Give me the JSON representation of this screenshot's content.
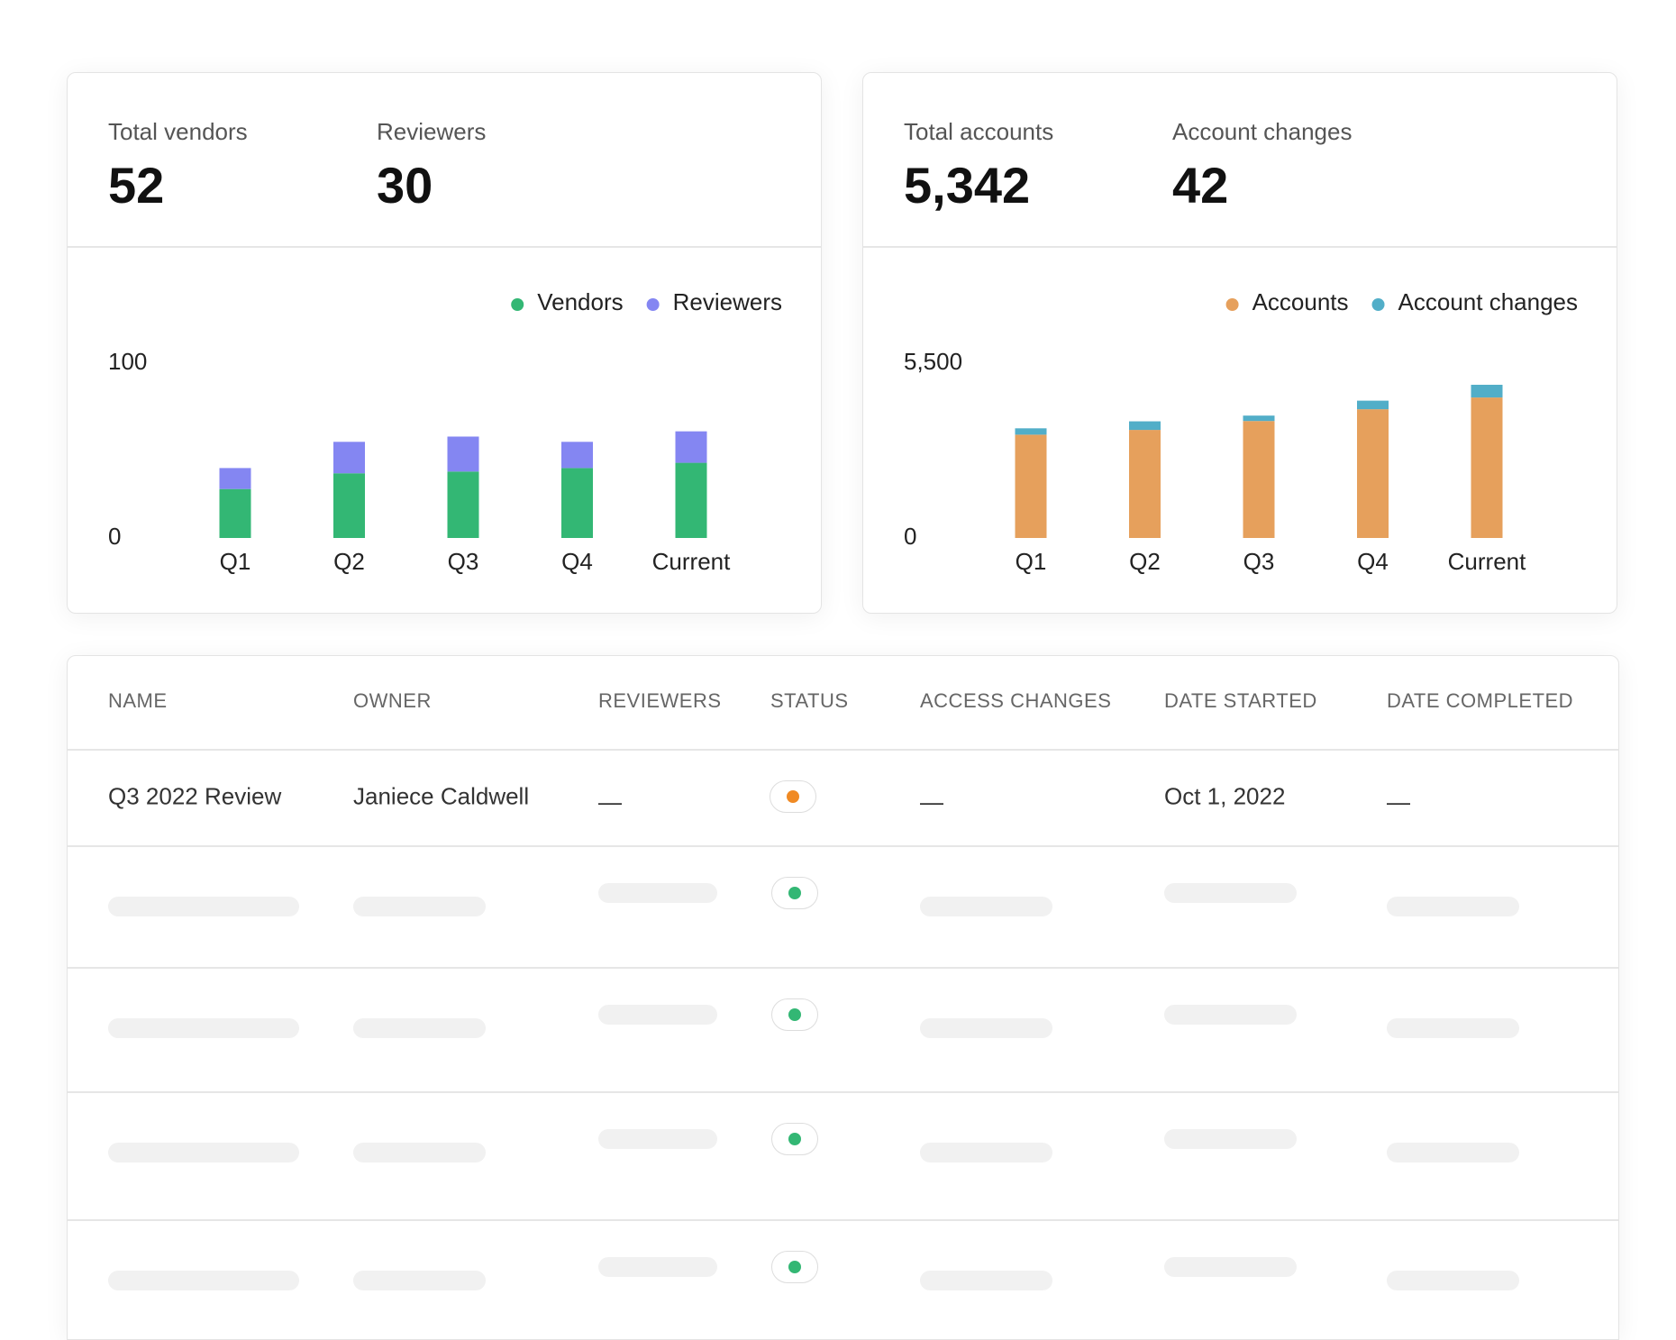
{
  "summary_cards": [
    {
      "stats": [
        {
          "label": "Total vendors",
          "value": "52"
        },
        {
          "label": "Reviewers",
          "value": "30"
        }
      ]
    },
    {
      "stats": [
        {
          "label": "Total accounts",
          "value": "5,342"
        },
        {
          "label": "Account changes",
          "value": "42"
        }
      ]
    }
  ],
  "chart_data": [
    {
      "type": "bar",
      "stacked": true,
      "legend": "top-right",
      "categories": [
        "Q1",
        "Q2",
        "Q3",
        "Q4",
        "Current"
      ],
      "series": [
        {
          "name": "Vendors",
          "color": "#33b774",
          "values": [
            28,
            37,
            38,
            40,
            43
          ]
        },
        {
          "name": "Reviewers",
          "color": "#8486f2",
          "values": [
            12,
            18,
            20,
            15,
            18
          ]
        }
      ],
      "ylim": [
        0,
        100
      ],
      "yticks": [
        0,
        100
      ]
    },
    {
      "type": "bar",
      "stacked": true,
      "legend": "top-right",
      "categories": [
        "Q1",
        "Q2",
        "Q3",
        "Q4",
        "Current"
      ],
      "series": [
        {
          "name": "Accounts",
          "color": "#e6a05c",
          "values": [
            3250,
            3400,
            3680,
            4050,
            4420
          ]
        },
        {
          "name": "Account changes",
          "color": "#52aec8",
          "values": [
            200,
            270,
            170,
            270,
            400
          ]
        }
      ],
      "ylim": [
        0,
        5500
      ],
      "yticks": [
        0,
        {
          "value": 5500,
          "label": "5,500"
        }
      ]
    }
  ],
  "table": {
    "columns": [
      "NAME",
      "OWNER",
      "REVIEWERS",
      "STATUS",
      "ACCESS CHANGES",
      "DATE STARTED",
      "DATE COMPLETED"
    ],
    "rows": [
      {
        "name": "Q3 2022 Review",
        "owner": "Janiece Caldwell",
        "reviewers": "—",
        "status_color": "#f08a24",
        "access_changes": "—",
        "date_started": "Oct 1, 2022",
        "date_completed": "—"
      }
    ]
  }
}
